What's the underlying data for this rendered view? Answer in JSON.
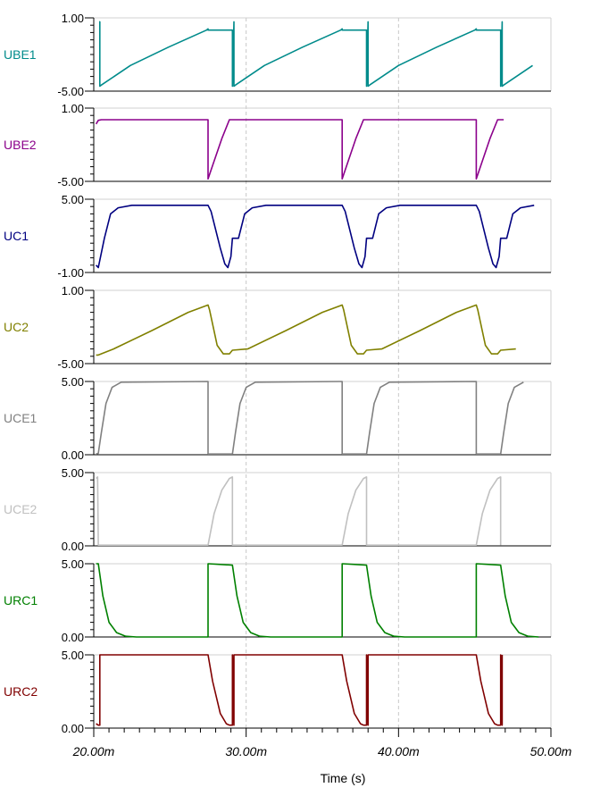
{
  "chart_data": {
    "type": "line",
    "xlabel": "Time (s)",
    "xlim": [
      0.02,
      0.05
    ],
    "x_ticks": [
      "20.00m",
      "30.00m",
      "40.00m",
      "50.00m"
    ],
    "x_tick_values": [
      0.02,
      0.03,
      0.04,
      0.05
    ],
    "grid": "dashed vertical lines at 30m and 40m",
    "period_s": 0.0088,
    "series": [
      {
        "name": "UBE1",
        "color": "#008b8b",
        "ylim": [
          -5,
          1
        ],
        "y_ticks": [
          "1.00",
          "-5.00"
        ],
        "x": [
          0.02035,
          0.0204,
          0.0204,
          0.0205,
          0.0224,
          0.0249,
          0.0274,
          0.0275,
          0.0275,
          0.0284,
          0.0291,
          0.0291
        ],
        "y": [
          0.68,
          0.68,
          -4.6,
          -4.5,
          -2.9,
          -1.4,
          0.0,
          0.1,
          0.0,
          0.0,
          0.0,
          -4.6
        ]
      },
      {
        "name": "UBE2",
        "color": "#8b008b",
        "ylim": [
          -5,
          1
        ],
        "y_ticks": [
          "1.00",
          "-5.00"
        ],
        "x": [
          0.02015,
          0.0203,
          0.0205,
          0.0273,
          0.0275,
          0.0275,
          0.0278,
          0.0284,
          0.0289,
          0.0291
        ],
        "y": [
          -0.3,
          0.0,
          0.05,
          0.05,
          0.05,
          -4.8,
          -3.7,
          -1.5,
          0.05,
          0.05
        ]
      },
      {
        "name": "UC1",
        "color": "#000080",
        "ylim": [
          -1,
          5
        ],
        "y_ticks": [
          "5.00",
          "-1.00"
        ],
        "x": [
          0.02015,
          0.0203,
          0.0207,
          0.0211,
          0.0216,
          0.0225,
          0.0275,
          0.0277,
          0.0283,
          0.0286,
          0.0288,
          0.029,
          0.0291
        ],
        "y": [
          -0.4,
          -0.6,
          1.8,
          3.8,
          4.3,
          4.5,
          4.5,
          4.0,
          1.0,
          -0.3,
          -0.6,
          0.3,
          1.8
        ]
      },
      {
        "name": "UC2",
        "color": "#808000",
        "ylim": [
          -5,
          1
        ],
        "y_ticks": [
          "1.00",
          "-5.00"
        ],
        "x": [
          0.02015,
          0.0203,
          0.0213,
          0.0238,
          0.0262,
          0.0275,
          0.0276,
          0.0281,
          0.0285,
          0.0289,
          0.0291
        ],
        "y": [
          -4.3,
          -4.3,
          -3.8,
          -2.3,
          -0.8,
          -0.2,
          -0.6,
          -3.5,
          -4.2,
          -4.2,
          -3.9
        ]
      },
      {
        "name": "UCE1",
        "color": "#808080",
        "ylim": [
          0,
          5
        ],
        "y_ticks": [
          "5.00",
          "0.00"
        ],
        "x": [
          0.02015,
          0.0203,
          0.0205,
          0.0208,
          0.0212,
          0.0218,
          0.0275,
          0.0275,
          0.0291
        ],
        "y": [
          0.05,
          0.1,
          1.5,
          3.5,
          4.6,
          4.95,
          5.0,
          0.05,
          0.05
        ]
      },
      {
        "name": "UCE2",
        "color": "#c0c0c0",
        "ylim": [
          0,
          5
        ],
        "y_ticks": [
          "5.00",
          "0.00"
        ],
        "x": [
          0.02015,
          0.02025,
          0.0203,
          0.0275,
          0.0279,
          0.0284,
          0.0289,
          0.0291,
          0.0291
        ],
        "y": [
          4.6,
          4.7,
          0.05,
          0.05,
          2.2,
          3.8,
          4.6,
          4.7,
          0.05
        ]
      },
      {
        "name": "URC1",
        "color": "#008000",
        "ylim": [
          0,
          5
        ],
        "y_ticks": [
          "5.00",
          "0.00"
        ],
        "x": [
          0.02015,
          0.0203,
          0.0206,
          0.021,
          0.0215,
          0.0221,
          0.0228,
          0.0275,
          0.0275,
          0.0291
        ],
        "y": [
          5.0,
          5.0,
          2.8,
          1.0,
          0.3,
          0.05,
          0.0,
          0.0,
          5.0,
          4.9
        ]
      },
      {
        "name": "URC2",
        "color": "#800000",
        "ylim": [
          0,
          5
        ],
        "y_ticks": [
          "5.00",
          "0.00"
        ],
        "x": [
          0.02015,
          0.0203,
          0.0204,
          0.0204,
          0.0275,
          0.0278,
          0.0283,
          0.0287,
          0.0289,
          0.0291,
          0.0291
        ],
        "y": [
          0.3,
          0.2,
          0.2,
          5.0,
          5.0,
          3.2,
          1.0,
          0.3,
          0.2,
          0.2,
          5.0
        ]
      }
    ]
  }
}
